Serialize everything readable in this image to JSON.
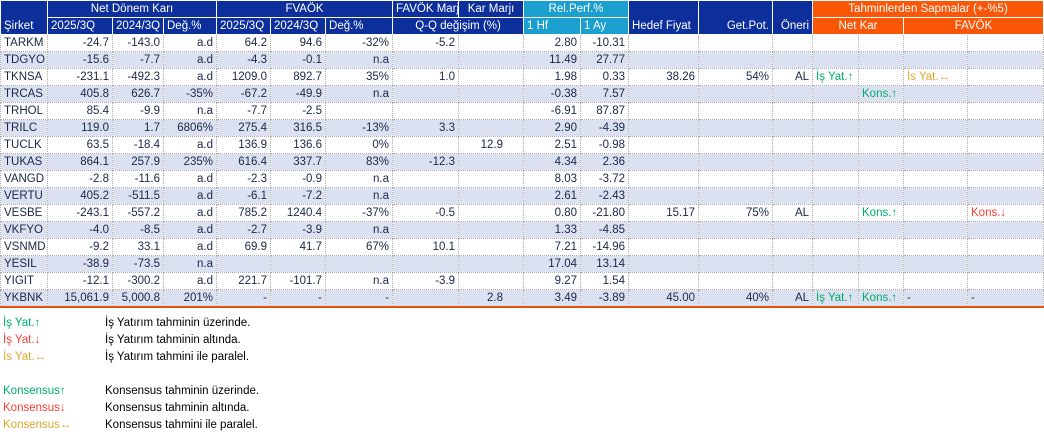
{
  "colors": {
    "navy": "#0c2f9b",
    "cyan": "#1b9fce",
    "orange": "#fa5608",
    "stripe": "#dbe1f1",
    "text": "#1a2845",
    "up": "#00ad6e",
    "down": "#fc3d32",
    "flat": "#e0a62e"
  },
  "table": {
    "header": {
      "sirket": "Şirket",
      "net_donem_kari": "Net Dönem Karı",
      "fvaok": "FVAÖK",
      "favok_marj": "FAVÖK Marj",
      "kar_marji": "Kar Marjı",
      "rel_perf": "Rel.Perf.%",
      "q_q_degisim": "Q-Q değişim (%)",
      "col_2025": "2025/3Q",
      "col_2024": "2024/3Q",
      "deg_pct": "Değ.%",
      "hf_1": "1 Hf",
      "ay_1": "1 Ay",
      "hedef_fiyat": "Hedef Fiyat",
      "get_pot": "Get.Pot.",
      "oneri": "Öneri",
      "tahmin_sapma": "Tahminlerden Sapmalar (+-%5)",
      "net_kar": "Net Kar",
      "favok_sapma": "FAVÖK"
    },
    "rows": [
      {
        "sirket": "TARKM",
        "ndk_2025": "-24.7",
        "ndk_2024": "-143.0",
        "ndk_deg": "a.d",
        "fv_2025": "64.2",
        "fv_2024": "94.6",
        "fv_deg": "-32%",
        "fm_qq": "-5.2",
        "km_qq": "",
        "hf1": "2.80",
        "ay1": "-10.31",
        "hedef": "",
        "getpot": "",
        "oneri": "",
        "nk_is": "",
        "nk_kons": "",
        "fv_is": "",
        "fv_kons": ""
      },
      {
        "sirket": "TDGYO",
        "ndk_2025": "-15.6",
        "ndk_2024": "-7.7",
        "ndk_deg": "a.d",
        "fv_2025": "-4.3",
        "fv_2024": "-0.1",
        "fv_deg": "n.a",
        "fm_qq": "",
        "km_qq": "",
        "hf1": "11.49",
        "ay1": "27.77",
        "hedef": "",
        "getpot": "",
        "oneri": "",
        "nk_is": "",
        "nk_kons": "",
        "fv_is": "",
        "fv_kons": ""
      },
      {
        "sirket": "TKNSA",
        "ndk_2025": "-231.1",
        "ndk_2024": "-492.3",
        "ndk_deg": "a.d",
        "fv_2025": "1209.0",
        "fv_2024": "892.7",
        "fv_deg": "35%",
        "fm_qq": "1.0",
        "km_qq": "",
        "hf1": "1.98",
        "ay1": "0.33",
        "hedef": "38.26",
        "getpot": "54%",
        "oneri": "AL",
        "nk_is": "İş Yat.↑",
        "nk_kons": "",
        "fv_is": "İs Yat.↔",
        "fv_kons": ""
      },
      {
        "sirket": "TRCAS",
        "ndk_2025": "405.8",
        "ndk_2024": "626.7",
        "ndk_deg": "-35%",
        "fv_2025": "-67.2",
        "fv_2024": "-49.9",
        "fv_deg": "n.a",
        "fm_qq": "",
        "km_qq": "",
        "hf1": "-0.38",
        "ay1": "7.57",
        "hedef": "",
        "getpot": "",
        "oneri": "",
        "nk_is": "",
        "nk_kons": "Kons.↑",
        "fv_is": "",
        "fv_kons": ""
      },
      {
        "sirket": "TRHOL",
        "ndk_2025": "85.4",
        "ndk_2024": "-9.9",
        "ndk_deg": "n.a",
        "fv_2025": "-7.7",
        "fv_2024": "-2.5",
        "fv_deg": "",
        "fm_qq": "",
        "km_qq": "",
        "hf1": "-6.91",
        "ay1": "87.87",
        "hedef": "",
        "getpot": "",
        "oneri": "",
        "nk_is": "",
        "nk_kons": "",
        "fv_is": "",
        "fv_kons": ""
      },
      {
        "sirket": "TRILC",
        "ndk_2025": "119.0",
        "ndk_2024": "1.7",
        "ndk_deg": "6806%",
        "fv_2025": "275.4",
        "fv_2024": "316.5",
        "fv_deg": "-13%",
        "fm_qq": "3.3",
        "km_qq": "",
        "hf1": "2.90",
        "ay1": "-4.39",
        "hedef": "",
        "getpot": "",
        "oneri": "",
        "nk_is": "",
        "nk_kons": "",
        "fv_is": "",
        "fv_kons": ""
      },
      {
        "sirket": "TUCLK",
        "ndk_2025": "63.5",
        "ndk_2024": "-18.4",
        "ndk_deg": "a.d",
        "fv_2025": "136.9",
        "fv_2024": "136.6",
        "fv_deg": "0%",
        "fm_qq": "",
        "km_qq": "12.9",
        "hf1": "2.51",
        "ay1": "-0.98",
        "hedef": "",
        "getpot": "",
        "oneri": "",
        "nk_is": "",
        "nk_kons": "",
        "fv_is": "",
        "fv_kons": ""
      },
      {
        "sirket": "TUKAS",
        "ndk_2025": "864.1",
        "ndk_2024": "257.9",
        "ndk_deg": "235%",
        "fv_2025": "616.4",
        "fv_2024": "337.7",
        "fv_deg": "83%",
        "fm_qq": "-12.3",
        "km_qq": "",
        "hf1": "4.34",
        "ay1": "2.36",
        "hedef": "",
        "getpot": "",
        "oneri": "",
        "nk_is": "",
        "nk_kons": "",
        "fv_is": "",
        "fv_kons": ""
      },
      {
        "sirket": "VANGD",
        "ndk_2025": "-2.8",
        "ndk_2024": "-11.6",
        "ndk_deg": "a.d",
        "fv_2025": "-2.3",
        "fv_2024": "-0.9",
        "fv_deg": "n.a",
        "fm_qq": "",
        "km_qq": "",
        "hf1": "8.03",
        "ay1": "-3.72",
        "hedef": "",
        "getpot": "",
        "oneri": "",
        "nk_is": "",
        "nk_kons": "",
        "fv_is": "",
        "fv_kons": ""
      },
      {
        "sirket": "VERTU",
        "ndk_2025": "405.2",
        "ndk_2024": "-511.5",
        "ndk_deg": "a.d",
        "fv_2025": "-6.1",
        "fv_2024": "-7.2",
        "fv_deg": "n.a",
        "fm_qq": "",
        "km_qq": "",
        "hf1": "2.61",
        "ay1": "-2.43",
        "hedef": "",
        "getpot": "",
        "oneri": "",
        "nk_is": "",
        "nk_kons": "",
        "fv_is": "",
        "fv_kons": ""
      },
      {
        "sirket": "VESBE",
        "ndk_2025": "-243.1",
        "ndk_2024": "-557.2",
        "ndk_deg": "a.d",
        "fv_2025": "785.2",
        "fv_2024": "1240.4",
        "fv_deg": "-37%",
        "fm_qq": "-0.5",
        "km_qq": "",
        "hf1": "0.80",
        "ay1": "-21.80",
        "hedef": "15.17",
        "getpot": "75%",
        "oneri": "AL",
        "nk_is": "",
        "nk_kons": "Kons.↑",
        "fv_is": "",
        "fv_kons": "Kons.↓"
      },
      {
        "sirket": "VKFYO",
        "ndk_2025": "-4.0",
        "ndk_2024": "-8.5",
        "ndk_deg": "a.d",
        "fv_2025": "-2.7",
        "fv_2024": "-3.9",
        "fv_deg": "n.a",
        "fm_qq": "",
        "km_qq": "",
        "hf1": "1.33",
        "ay1": "-4.85",
        "hedef": "",
        "getpot": "",
        "oneri": "",
        "nk_is": "",
        "nk_kons": "",
        "fv_is": "",
        "fv_kons": ""
      },
      {
        "sirket": "VSNMD",
        "ndk_2025": "-9.2",
        "ndk_2024": "33.1",
        "ndk_deg": "a.d",
        "fv_2025": "69.9",
        "fv_2024": "41.7",
        "fv_deg": "67%",
        "fm_qq": "10.1",
        "km_qq": "",
        "hf1": "7.21",
        "ay1": "-14.96",
        "hedef": "",
        "getpot": "",
        "oneri": "",
        "nk_is": "",
        "nk_kons": "",
        "fv_is": "",
        "fv_kons": ""
      },
      {
        "sirket": "YESIL",
        "ndk_2025": "-38.9",
        "ndk_2024": "-73.5",
        "ndk_deg": "n.a",
        "fv_2025": "",
        "fv_2024": "",
        "fv_deg": "",
        "fm_qq": "",
        "km_qq": "",
        "hf1": "17.04",
        "ay1": "13.14",
        "hedef": "",
        "getpot": "",
        "oneri": "",
        "nk_is": "",
        "nk_kons": "",
        "fv_is": "",
        "fv_kons": ""
      },
      {
        "sirket": "YIGIT",
        "ndk_2025": "-12.1",
        "ndk_2024": "-300.2",
        "ndk_deg": "a.d",
        "fv_2025": "221.7",
        "fv_2024": "-101.7",
        "fv_deg": "n.a",
        "fm_qq": "-3.9",
        "km_qq": "",
        "hf1": "9.27",
        "ay1": "1.54",
        "hedef": "",
        "getpot": "",
        "oneri": "",
        "nk_is": "",
        "nk_kons": "",
        "fv_is": "",
        "fv_kons": ""
      },
      {
        "sirket": "YKBNK",
        "ndk_2025": "15,061.9",
        "ndk_2024": "5,000.8",
        "ndk_deg": "201%",
        "fv_2025": "-",
        "fv_2024": "-",
        "fv_deg": "-",
        "fm_qq": "",
        "km_qq": "2.8",
        "hf1": "3.49",
        "ay1": "-3.89",
        "hedef": "45.00",
        "getpot": "40%",
        "oneri": "AL",
        "nk_is": "İş Yat.↑",
        "nk_kons": "Kons.↑",
        "fv_is": "-",
        "fv_kons": "-"
      }
    ]
  },
  "legend": {
    "groups": [
      {
        "items": [
          {
            "label": "İş Yat.↑",
            "tone": "up",
            "desc": "İş Yatırım tahminin üzerinde."
          },
          {
            "label": "İş Yat.↓",
            "tone": "down",
            "desc": "İş Yatırım tahminin altında."
          },
          {
            "label": "İs Yat.↔",
            "tone": "flat",
            "desc": "İş Yatırım tahmini ile paralel."
          }
        ]
      },
      {
        "items": [
          {
            "label": "Konsensus↑",
            "tone": "up",
            "desc": "Konsensus tahminin üzerinde."
          },
          {
            "label": "Konsensus↓",
            "tone": "down",
            "desc": "Konsensus tahminin altında."
          },
          {
            "label": "Konsensus↔",
            "tone": "flat",
            "desc": "Konsensus tahmini ile paralel."
          }
        ]
      }
    ]
  }
}
